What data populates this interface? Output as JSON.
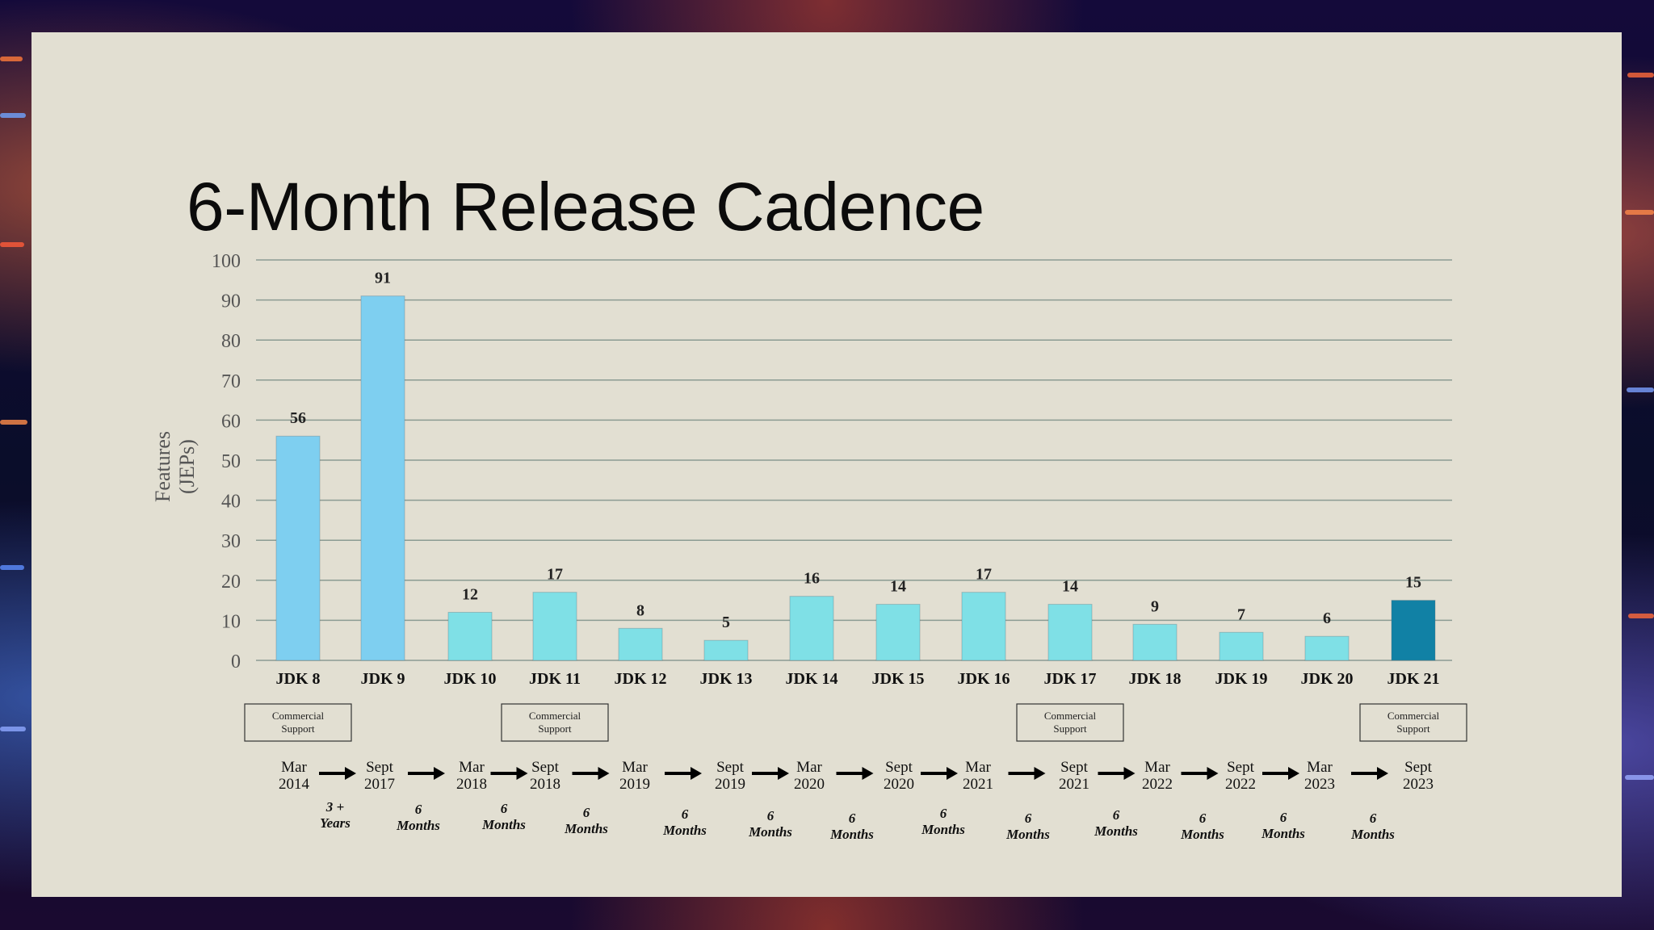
{
  "slide": {
    "title": "6-Month Release Cadence"
  },
  "colors": {
    "bar_primary": "#7ecff0",
    "bar_feature": "#7fe0e6",
    "bar_latest": "#1181a5",
    "grid": "#8b9b93",
    "slide_bg": "#e2dfd2"
  },
  "chart_data": {
    "type": "bar",
    "title": "",
    "xlabel": "",
    "ylabel": "Features (JEPs)",
    "ylim": [
      0,
      100
    ],
    "yticks": [
      "0",
      "10",
      "20",
      "30",
      "40",
      "50",
      "60",
      "70",
      "80",
      "90",
      "100"
    ],
    "grid": true,
    "categories": [
      "JDK 8",
      "JDK 9",
      "JDK 10",
      "JDK 11",
      "JDK 12",
      "JDK 13",
      "JDK 14",
      "JDK 15",
      "JDK 16",
      "JDK 17",
      "JDK 18",
      "JDK 19",
      "JDK 20",
      "JDK 21"
    ],
    "values": [
      56,
      91,
      12,
      17,
      8,
      5,
      16,
      14,
      17,
      14,
      9,
      7,
      6,
      15
    ],
    "bar_colors": [
      "#7ecff0",
      "#7ecff0",
      "#7fe0e6",
      "#7fe0e6",
      "#7fe0e6",
      "#7fe0e6",
      "#7fe0e6",
      "#7fe0e6",
      "#7fe0e6",
      "#7fe0e6",
      "#7fe0e6",
      "#7fe0e6",
      "#7fe0e6",
      "#1181a5"
    ]
  },
  "support_boxes": [
    {
      "index": 0,
      "line1": "Commercial",
      "line2": "Support"
    },
    {
      "index": 3,
      "line1": "Commercial",
      "line2": "Support"
    },
    {
      "index": 9,
      "line1": "Commercial",
      "line2": "Support"
    },
    {
      "index": 13,
      "line1": "Commercial",
      "line2": "Support"
    }
  ],
  "timeline": {
    "dates": [
      {
        "month": "Mar",
        "year": "2014"
      },
      {
        "month": "Sept",
        "year": "2017"
      },
      {
        "month": "Mar",
        "year": "2018"
      },
      {
        "month": "Sept",
        "year": "2018"
      },
      {
        "month": "Mar",
        "year": "2019"
      },
      {
        "month": "Sept",
        "year": "2019"
      },
      {
        "month": "Mar",
        "year": "2020"
      },
      {
        "month": "Sept",
        "year": "2020"
      },
      {
        "month": "Mar",
        "year": "2021"
      },
      {
        "month": "Sept",
        "year": "2021"
      },
      {
        "month": "Mar",
        "year": "2022"
      },
      {
        "month": "Sept",
        "year": "2022"
      },
      {
        "month": "Mar",
        "year": "2023"
      },
      {
        "month": "Sept",
        "year": "2023"
      }
    ],
    "intervals": [
      {
        "top": "3 +",
        "bottom": "Years"
      },
      {
        "top": "6",
        "bottom": "Months"
      },
      {
        "top": "6",
        "bottom": "Months"
      },
      {
        "top": "6",
        "bottom": "Months"
      },
      {
        "top": "6",
        "bottom": "Months"
      },
      {
        "top": "6",
        "bottom": "Months"
      },
      {
        "top": "6",
        "bottom": "Months"
      },
      {
        "top": "6",
        "bottom": "Months"
      },
      {
        "top": "6",
        "bottom": "Months"
      },
      {
        "top": "6",
        "bottom": "Months"
      },
      {
        "top": "6",
        "bottom": "Months"
      },
      {
        "top": "6",
        "bottom": "Months"
      },
      {
        "top": "6",
        "bottom": "Months"
      }
    ]
  }
}
